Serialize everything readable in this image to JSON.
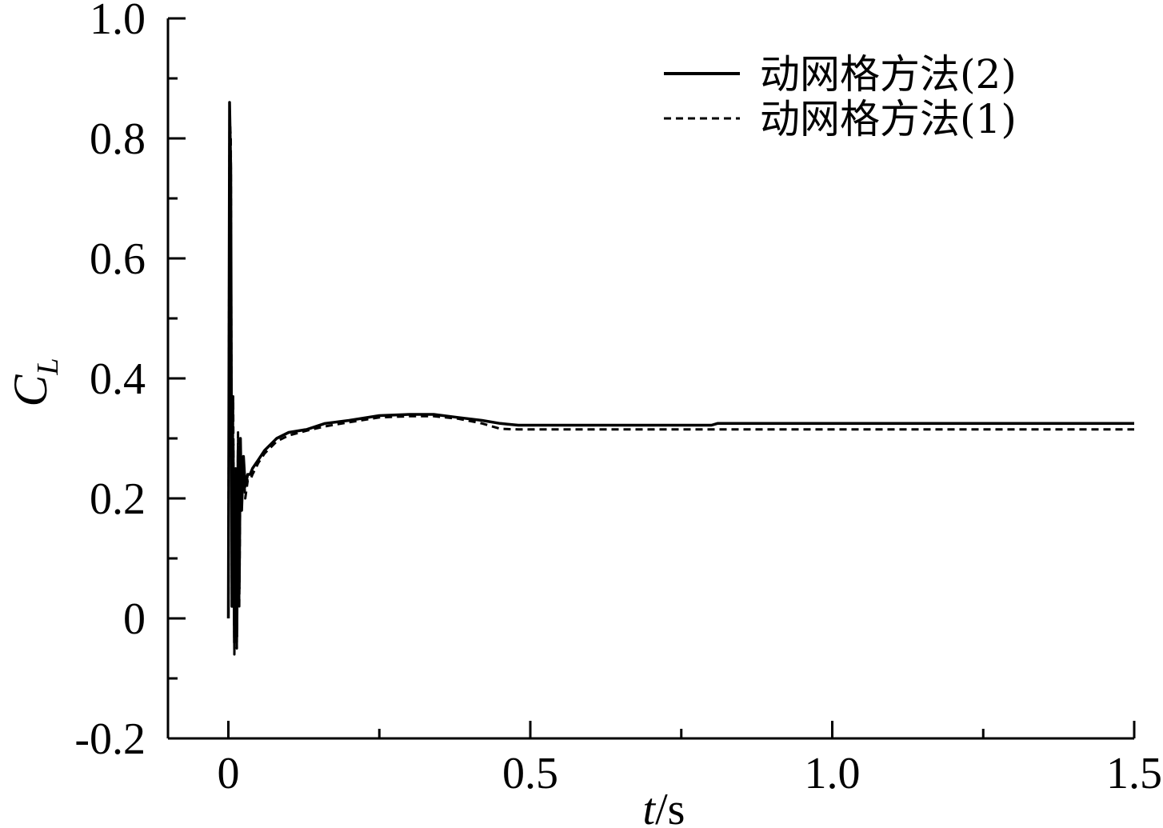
{
  "chart_data": {
    "type": "line",
    "title": "",
    "xlabel": {
      "var": "t",
      "unit": "/s"
    },
    "ylabel": {
      "base": "C",
      "sub": "L"
    },
    "xlim": [
      -0.1,
      1.5
    ],
    "ylim": [
      -0.2,
      1.0
    ],
    "x_ticks": [
      {
        "value": 0,
        "label": "0"
      },
      {
        "value": 0.5,
        "label": "0.5"
      },
      {
        "value": 1.0,
        "label": "1.0"
      },
      {
        "value": 1.5,
        "label": "1.5"
      }
    ],
    "y_ticks": [
      {
        "value": 1.0,
        "label": "1.0"
      },
      {
        "value": 0.8,
        "label": "0.8"
      },
      {
        "value": 0.6,
        "label": "0.6"
      },
      {
        "value": 0.4,
        "label": "0.4"
      },
      {
        "value": 0.2,
        "label": "0.2"
      },
      {
        "value": 0,
        "label": "0"
      },
      {
        "value": -0.2,
        "label": "-0.2"
      }
    ],
    "grid": false,
    "legend_position": "top-right",
    "series": [
      {
        "name": "动网格方法(2)",
        "style": "solid",
        "color": "#000000",
        "x": [
          0,
          0.002,
          0.004,
          0.006,
          0.008,
          0.01,
          0.012,
          0.014,
          0.016,
          0.018,
          0.02,
          0.022,
          0.025,
          0.028,
          0.032,
          0.036,
          0.04,
          0.05,
          0.06,
          0.08,
          0.1,
          0.13,
          0.16,
          0.2,
          0.25,
          0.3,
          0.34,
          0.38,
          0.42,
          0.45,
          0.48,
          0.55,
          0.65,
          0.8,
          0.81,
          1.0,
          1.2,
          1.4,
          1.5
        ],
        "y": [
          0,
          0.86,
          0.75,
          0.02,
          0.29,
          -0.04,
          0.2,
          -0.03,
          0.28,
          0.05,
          0.3,
          0.18,
          0.27,
          0.22,
          0.24,
          0.24,
          0.25,
          0.265,
          0.28,
          0.3,
          0.31,
          0.315,
          0.325,
          0.33,
          0.338,
          0.34,
          0.34,
          0.335,
          0.33,
          0.325,
          0.322,
          0.322,
          0.322,
          0.322,
          0.325,
          0.325,
          0.325,
          0.325,
          0.325
        ]
      },
      {
        "name": "动网格方法(1)",
        "style": "dashed",
        "color": "#000000",
        "x": [
          0,
          0.002,
          0.004,
          0.006,
          0.008,
          0.01,
          0.012,
          0.014,
          0.016,
          0.018,
          0.02,
          0.022,
          0.025,
          0.028,
          0.032,
          0.036,
          0.04,
          0.05,
          0.06,
          0.08,
          0.1,
          0.13,
          0.16,
          0.2,
          0.25,
          0.3,
          0.34,
          0.38,
          0.42,
          0.45,
          0.48,
          0.55,
          0.65,
          0.8,
          1.0,
          1.2,
          1.4,
          1.5
        ],
        "y": [
          0,
          0.84,
          0.8,
          0.05,
          0.37,
          -0.06,
          0.25,
          -0.05,
          0.31,
          0.02,
          0.26,
          0.19,
          0.25,
          0.2,
          0.23,
          0.23,
          0.24,
          0.26,
          0.275,
          0.295,
          0.305,
          0.313,
          0.32,
          0.327,
          0.335,
          0.337,
          0.337,
          0.333,
          0.325,
          0.316,
          0.315,
          0.315,
          0.315,
          0.315,
          0.315,
          0.315,
          0.315,
          0.315
        ]
      }
    ]
  }
}
